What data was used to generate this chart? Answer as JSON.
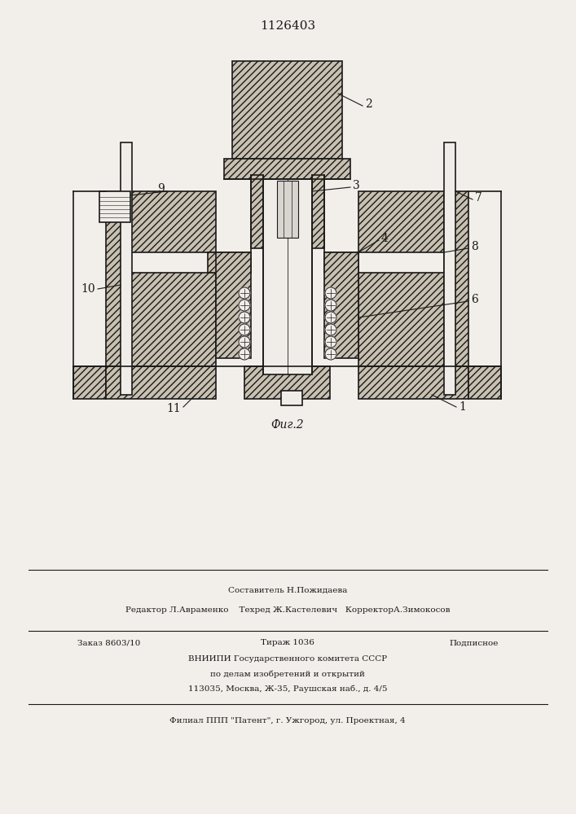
{
  "title": "1126403",
  "bg_color": "#f2efea",
  "line_color": "#1a1a1a",
  "metal_color": "#c8c0b0",
  "white_color": "#f0ede8",
  "hatch_angle": "////",
  "footer": {
    "line1": "Составитель Н.Пожидаева",
    "line2": "Редактор Л.Авраменко    Техред Ж.Кастелевич   КорректорА.Зимокосов",
    "line3a": "Заказ 8603/10",
    "line3b": "Тираж 1036",
    "line3c": "Подписное",
    "line4": "ВНИИПИ Государственного комитета СССР",
    "line5": "по делам изобретений и открытий",
    "line6": "113035, Москва, Ж-35, Раушская наб., д. 4/5",
    "line7": "Филиал ППП \"Патент\", г. Ужгород, ул. Проектная, 4"
  },
  "fig_caption": "Фиг.2"
}
